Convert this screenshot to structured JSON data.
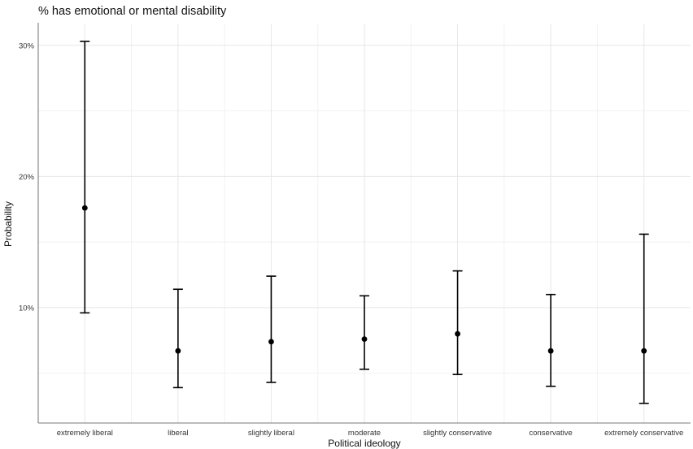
{
  "chart_data": {
    "type": "scatter",
    "title": "% has emotional or mental disability",
    "xlabel": "Political ideology",
    "ylabel": "Probability",
    "categories": [
      "extremely liberal",
      "liberal",
      "slightly liberal",
      "moderate",
      "slightly conservative",
      "conservative",
      "extremely conservative"
    ],
    "estimate": [
      0.176,
      0.067,
      0.074,
      0.076,
      0.08,
      0.067,
      0.067
    ],
    "lower": [
      0.096,
      0.039,
      0.043,
      0.053,
      0.049,
      0.04,
      0.027
    ],
    "upper": [
      0.303,
      0.114,
      0.124,
      0.109,
      0.128,
      0.11,
      0.156
    ],
    "ylim": [
      0.012,
      0.316
    ],
    "yticks": [
      0.1,
      0.2,
      0.3
    ],
    "ytick_labels": [
      "10%",
      "20%",
      "30%"
    ],
    "grid": true,
    "colors": {
      "marks": "#000000",
      "grid_major": "#e6e6e6",
      "grid_minor": "#f2f2f2",
      "axis": "#4d4d4d"
    }
  }
}
